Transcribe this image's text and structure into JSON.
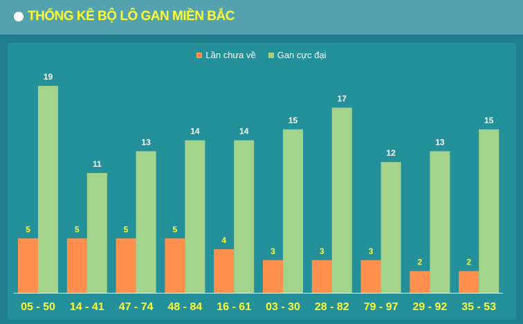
{
  "header": {
    "title": "THỐNG KÊ BỘ LÔ GAN MIỀN BẮC"
  },
  "colors": {
    "current": "#ff9050",
    "max": "#a4d48b",
    "label_current": "#ffff33",
    "label_max": "#ffffff"
  },
  "chart_data": {
    "type": "bar",
    "categories": [
      "05 - 50",
      "14 - 41",
      "47 - 74",
      "48 - 84",
      "16 - 61",
      "03 - 30",
      "28 - 82",
      "79 - 97",
      "29 - 92",
      "35 - 53"
    ],
    "series": [
      {
        "name": "Lần chưa về",
        "values": [
          5,
          5,
          5,
          5,
          4,
          3,
          3,
          3,
          2,
          2
        ]
      },
      {
        "name": "Gan cực đại",
        "values": [
          19,
          11,
          13,
          14,
          14,
          15,
          17,
          12,
          13,
          15
        ]
      }
    ],
    "ylim": [
      0,
      19
    ],
    "legend": "top-center",
    "grid": false,
    "data_labels": true
  }
}
